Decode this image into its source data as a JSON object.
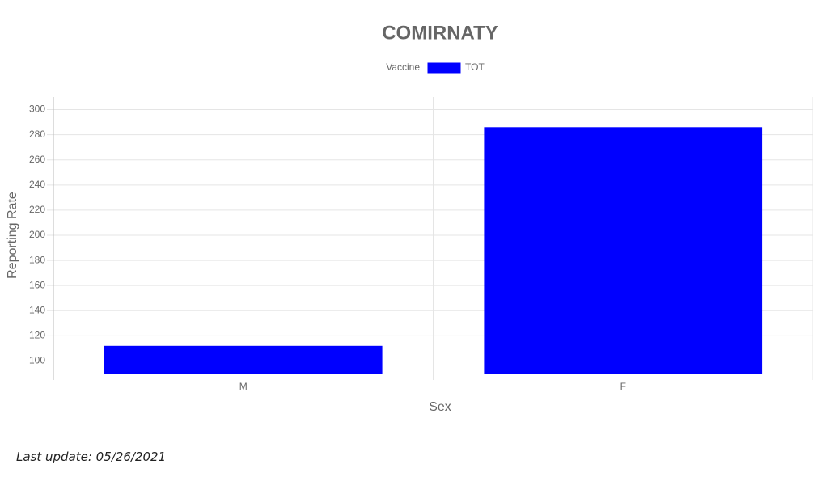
{
  "chart_data": {
    "type": "bar",
    "title": "COMIRNATY",
    "legend_title": "Vaccine",
    "x_label": "Sex",
    "y_label": "Reporting Rate",
    "categories": [
      "M",
      "F"
    ],
    "series": [
      {
        "name": "TOT",
        "color": "#0000ff",
        "values": [
          112,
          286
        ]
      }
    ],
    "ylim": [
      90,
      310
    ],
    "yticks": [
      100,
      120,
      140,
      160,
      180,
      200,
      220,
      240,
      260,
      280,
      300
    ],
    "grid": true,
    "note": "Last update: 05/26/2021"
  }
}
